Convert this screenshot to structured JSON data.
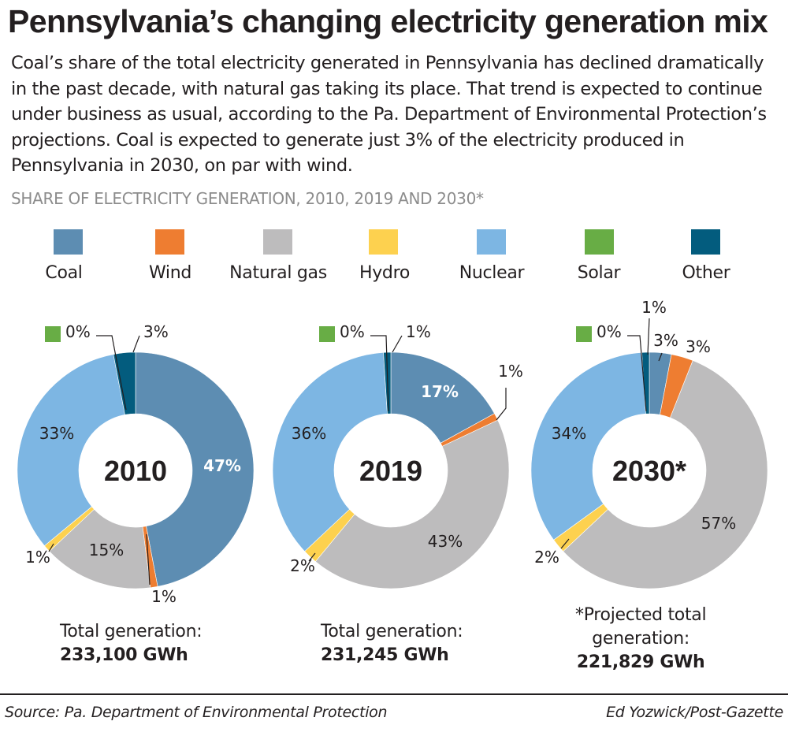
{
  "title": "Pennsylvania’s changing electricity generation mix",
  "intro": "Coal’s share of the total electricity generated in Pennsylvania has declined dramatically in the past decade, with natural gas taking its place. That trend is expected to continue under business as usual, according to the Pa. Department of Environmental Protection’s projections. Coal is expected to generate just 3% of the electricity produced in Pennsylvania in 2030, on par with wind.",
  "subhead": "SHARE OF ELECTRICITY GENERATION, 2010, 2019 AND 2030*",
  "legend": [
    {
      "label": "Coal",
      "color": "#5d8db2"
    },
    {
      "label": "Wind",
      "color": "#ee7d31"
    },
    {
      "label": "Natural gas",
      "color": "#bdbcbd"
    },
    {
      "label": "Hydro",
      "color": "#fdd14f"
    },
    {
      "label": "Nuclear",
      "color": "#7db6e3"
    },
    {
      "label": "Solar",
      "color": "#68ad45"
    },
    {
      "label": "Other",
      "color": "#035c7e"
    }
  ],
  "chart_data": [
    {
      "type": "pie",
      "center_label": "2010",
      "categories": [
        "Coal",
        "Wind",
        "Natural gas",
        "Hydro",
        "Nuclear",
        "Solar",
        "Other"
      ],
      "values": [
        47,
        1,
        15,
        1,
        33,
        0,
        3
      ],
      "labels": [
        "47%",
        "1%",
        "15%",
        "1%",
        "33%",
        "0%",
        "3%"
      ],
      "total_line1": "Total generation:",
      "total_line2": "233,100 GWh"
    },
    {
      "type": "pie",
      "center_label": "2019",
      "categories": [
        "Coal",
        "Wind",
        "Natural gas",
        "Hydro",
        "Nuclear",
        "Solar",
        "Other"
      ],
      "values": [
        17,
        1,
        43,
        2,
        36,
        0,
        1
      ],
      "labels": [
        "17%",
        "1%",
        "43%",
        "2%",
        "36%",
        "0%",
        "1%"
      ],
      "total_line1": "Total generation:",
      "total_line2": "231,245 GWh"
    },
    {
      "type": "pie",
      "center_label": "2030*",
      "categories": [
        "Coal",
        "Wind",
        "Natural gas",
        "Hydro",
        "Nuclear",
        "Solar",
        "Other"
      ],
      "values": [
        3,
        3,
        57,
        2,
        34,
        0,
        1
      ],
      "labels": [
        "3%",
        "3%",
        "57%",
        "2%",
        "34%",
        "0%",
        "1%"
      ],
      "total_line1": "*Projected total",
      "total_line1b": "generation:",
      "total_line2": "221,829 GWh"
    }
  ],
  "source": "Source: Pa. Department of Environmental Protection",
  "credit": "Ed Yozwick/Post-Gazette"
}
